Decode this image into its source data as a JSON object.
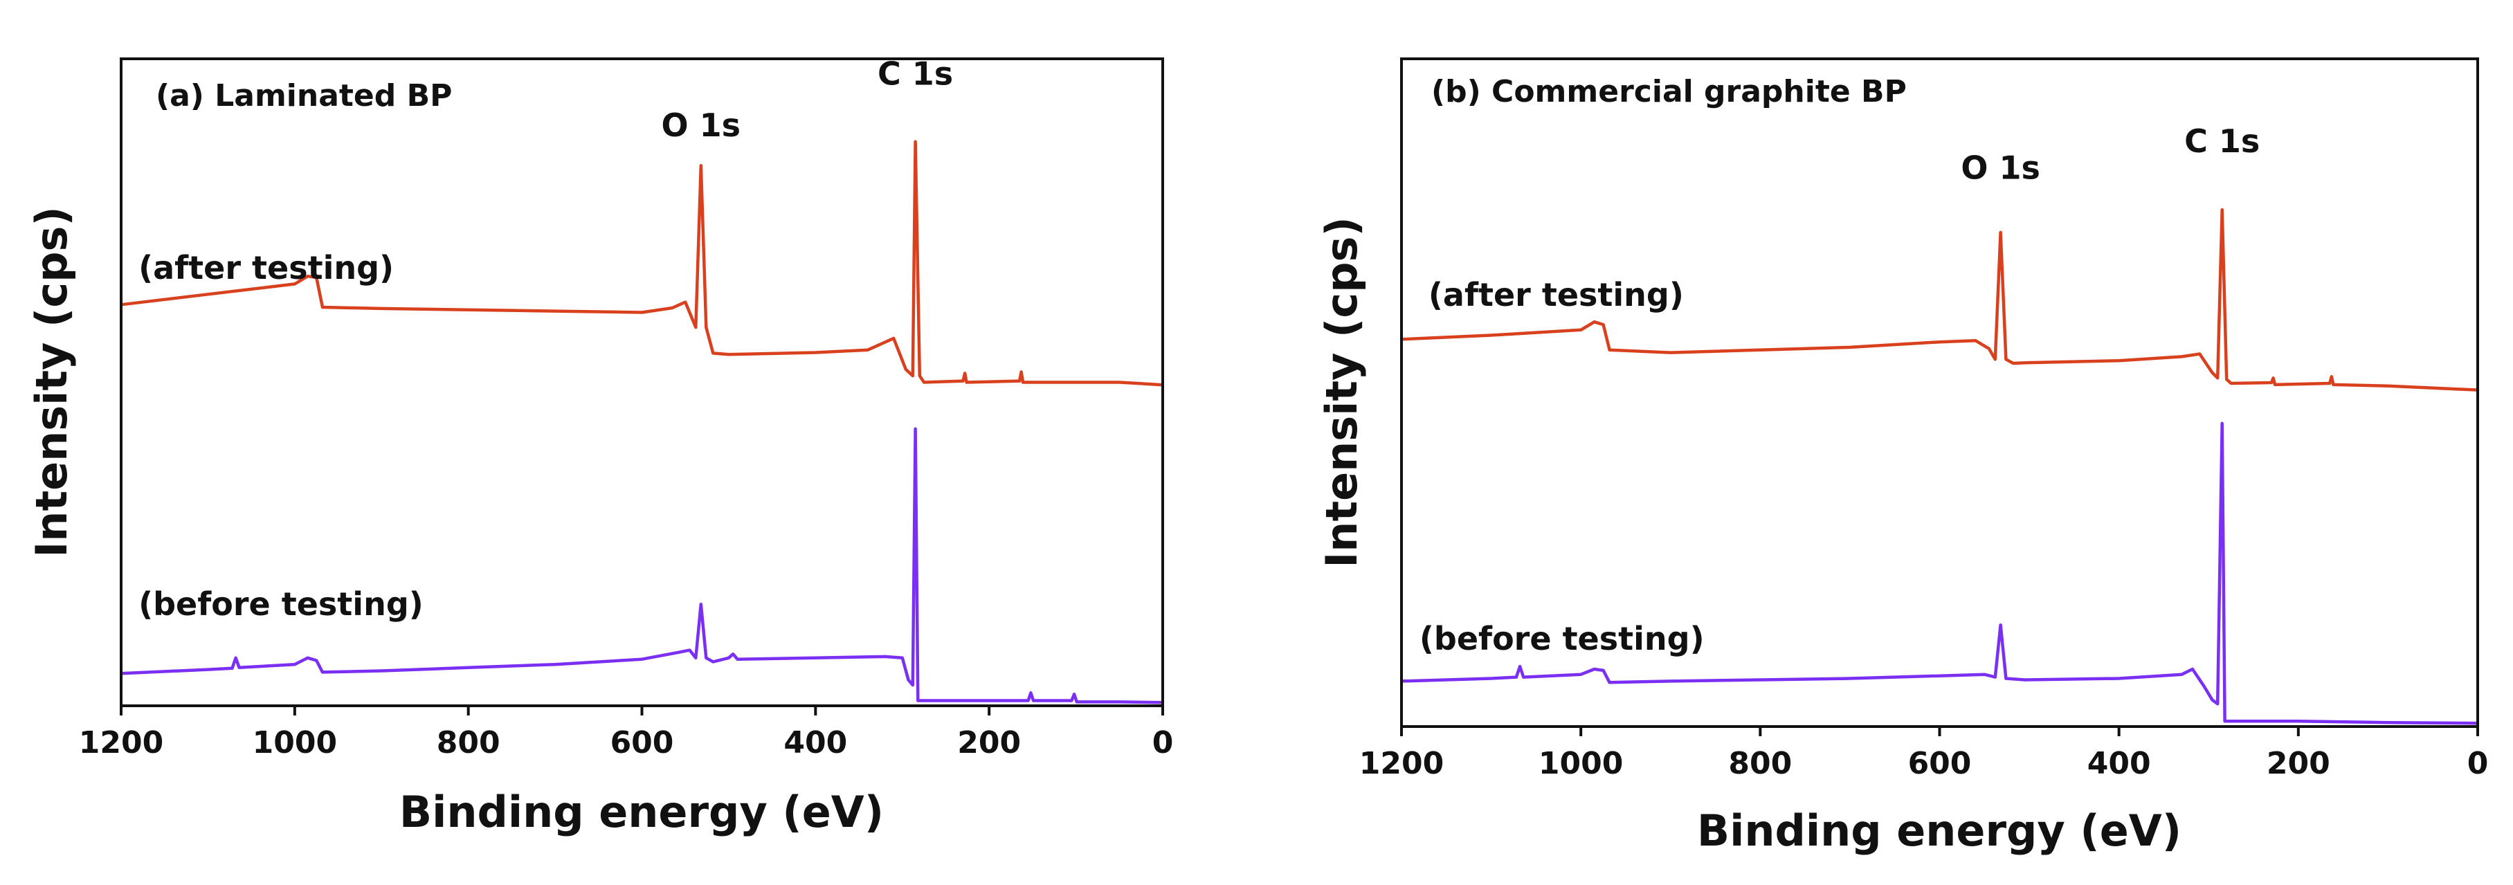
{
  "chart_data": [
    {
      "type": "line",
      "panel_label": "(a) Laminated BP",
      "xlabel": "Binding energy (eV)",
      "ylabel": "Intensity (cps)",
      "xlim": [
        1200,
        0
      ],
      "ylim": [
        0,
        100
      ],
      "x_reversed": true,
      "y_ticks_shown": false,
      "xticks": [
        "1200",
        "1000",
        "800",
        "600",
        "400",
        "200",
        "0"
      ],
      "annotations": [
        {
          "text": "O 1s",
          "x": 532,
          "y": 88
        },
        {
          "text": "C 1s",
          "x": 285,
          "y": 96
        }
      ],
      "series": [
        {
          "name": "(after testing)",
          "color": "#d9401d",
          "label_x": 1180,
          "label_y": 66,
          "points": [
            [
              1200,
              62
            ],
            [
              1150,
              62.8
            ],
            [
              1100,
              63.6
            ],
            [
              1050,
              64.4
            ],
            [
              1000,
              65.2
            ],
            [
              985,
              66.4
            ],
            [
              975,
              66.2
            ],
            [
              968,
              61.6
            ],
            [
              900,
              61.4
            ],
            [
              800,
              61.2
            ],
            [
              700,
              61.0
            ],
            [
              600,
              60.8
            ],
            [
              565,
              61.5
            ],
            [
              550,
              62.4
            ],
            [
              538,
              58.5
            ],
            [
              532,
              83.5
            ],
            [
              526,
              58.5
            ],
            [
              518,
              54.5
            ],
            [
              500,
              54.3
            ],
            [
              400,
              54.6
            ],
            [
              340,
              55.0
            ],
            [
              310,
              56.8
            ],
            [
              296,
              52.0
            ],
            [
              288,
              51.0
            ],
            [
              285,
              87.2
            ],
            [
              280,
              51.0
            ],
            [
              275,
              50.0
            ],
            [
              230,
              50.2
            ],
            [
              228,
              51.4
            ],
            [
              226,
              50.0
            ],
            [
              165,
              50.2
            ],
            [
              163,
              51.6
            ],
            [
              161,
              50.0
            ],
            [
              100,
              50.0
            ],
            [
              50,
              50.0
            ],
            [
              0,
              49.6
            ]
          ]
        },
        {
          "name": "(before testing)",
          "color": "#7a2ff2",
          "label_x": 1180,
          "label_y": 14,
          "points": [
            [
              1200,
              5.0
            ],
            [
              1100,
              5.6
            ],
            [
              1072,
              5.8
            ],
            [
              1068,
              7.4
            ],
            [
              1064,
              5.9
            ],
            [
              1000,
              6.4
            ],
            [
              985,
              7.4
            ],
            [
              975,
              7.0
            ],
            [
              968,
              5.2
            ],
            [
              900,
              5.4
            ],
            [
              800,
              5.9
            ],
            [
              700,
              6.4
            ],
            [
              600,
              7.2
            ],
            [
              560,
              8.2
            ],
            [
              545,
              8.6
            ],
            [
              538,
              7.4
            ],
            [
              532,
              15.7
            ],
            [
              526,
              7.4
            ],
            [
              518,
              6.8
            ],
            [
              500,
              7.4
            ],
            [
              495,
              8.0
            ],
            [
              490,
              7.2
            ],
            [
              400,
              7.4
            ],
            [
              320,
              7.6
            ],
            [
              300,
              7.4
            ],
            [
              293,
              4.0
            ],
            [
              288,
              3.2
            ],
            [
              285,
              42.8
            ],
            [
              282,
              0.8
            ],
            [
              200,
              0.8
            ],
            [
              155,
              0.8
            ],
            [
              152,
              2.0
            ],
            [
              149,
              0.8
            ],
            [
              105,
              0.8
            ],
            [
              102,
              1.8
            ],
            [
              99,
              0.6
            ],
            [
              50,
              0.6
            ],
            [
              0,
              0.5
            ]
          ]
        }
      ]
    },
    {
      "type": "line",
      "panel_label": "(b) Commercial graphite BP",
      "xlabel": "Binding energy (eV)",
      "ylabel": "Intensity (cps)",
      "xlim": [
        1200,
        0
      ],
      "ylim": [
        0,
        100
      ],
      "x_reversed": true,
      "y_ticks_shown": false,
      "xticks": [
        "1200",
        "1000",
        "800",
        "600",
        "400",
        "200",
        "0"
      ],
      "annotations": [
        {
          "text": "O 1s",
          "x": 532,
          "y": 82
        },
        {
          "text": "C 1s",
          "x": 285,
          "y": 86
        }
      ],
      "series": [
        {
          "name": "(after testing)",
          "color": "#d9401d",
          "label_x": 1170,
          "label_y": 63,
          "points": [
            [
              1200,
              58.0
            ],
            [
              1100,
              58.6
            ],
            [
              1000,
              59.4
            ],
            [
              985,
              60.6
            ],
            [
              975,
              60.2
            ],
            [
              968,
              56.4
            ],
            [
              900,
              56.0
            ],
            [
              800,
              56.4
            ],
            [
              700,
              56.8
            ],
            [
              600,
              57.6
            ],
            [
              560,
              57.8
            ],
            [
              545,
              56.6
            ],
            [
              538,
              55.0
            ],
            [
              532,
              74.0
            ],
            [
              526,
              55.0
            ],
            [
              518,
              54.4
            ],
            [
              500,
              54.5
            ],
            [
              400,
              54.8
            ],
            [
              330,
              55.4
            ],
            [
              310,
              55.8
            ],
            [
              296,
              53.0
            ],
            [
              290,
              52.2
            ],
            [
              285,
              77.4
            ],
            [
              280,
              52.0
            ],
            [
              275,
              51.4
            ],
            [
              230,
              51.5
            ],
            [
              228,
              52.2
            ],
            [
              226,
              51.2
            ],
            [
              165,
              51.4
            ],
            [
              163,
              52.4
            ],
            [
              161,
              51.2
            ],
            [
              100,
              51.0
            ],
            [
              0,
              50.4
            ]
          ]
        },
        {
          "name": "(before testing)",
          "color": "#7a2ff2",
          "label_x": 1180,
          "label_y": 11.5,
          "points": [
            [
              1200,
              6.8
            ],
            [
              1100,
              7.2
            ],
            [
              1072,
              7.4
            ],
            [
              1068,
              9.0
            ],
            [
              1064,
              7.4
            ],
            [
              1000,
              7.8
            ],
            [
              985,
              8.6
            ],
            [
              975,
              8.4
            ],
            [
              968,
              6.6
            ],
            [
              900,
              6.8
            ],
            [
              800,
              7.0
            ],
            [
              700,
              7.2
            ],
            [
              600,
              7.6
            ],
            [
              550,
              7.8
            ],
            [
              538,
              7.4
            ],
            [
              532,
              15.2
            ],
            [
              526,
              7.2
            ],
            [
              505,
              7.0
            ],
            [
              400,
              7.2
            ],
            [
              330,
              7.8
            ],
            [
              318,
              8.6
            ],
            [
              305,
              6.0
            ],
            [
              296,
              4.0
            ],
            [
              290,
              3.4
            ],
            [
              285,
              45.4
            ],
            [
              282,
              0.8
            ],
            [
              200,
              0.8
            ],
            [
              100,
              0.6
            ],
            [
              0,
              0.5
            ]
          ]
        }
      ]
    }
  ]
}
